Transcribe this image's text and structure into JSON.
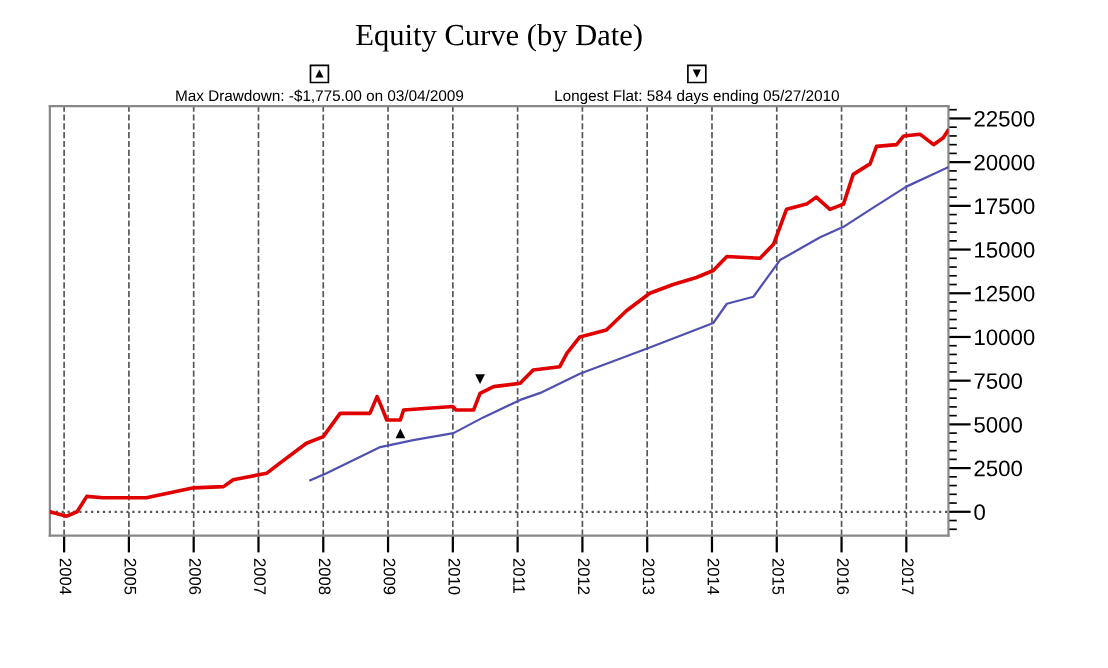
{
  "chart_data": {
    "type": "line",
    "title": "Equity Curve (by Date)",
    "annotations": [
      "▲",
      "Max Drawdown: -$1,775.00 on 03/04/2009",
      "▼",
      "Longest Flat: 584 days ending 05/27/2010",
      {
        "text": "▲",
        "x": 2009.19,
        "y": 5250
      },
      {
        "text": "▼",
        "x": 2010.42,
        "y": 6770
      }
    ],
    "series": [
      {
        "color": "#e00000",
        "x": [
          2003.78,
          2004.04,
          2004.2,
          2004.35,
          2004.6,
          2005.27,
          2006.0,
          2006.46,
          2006.61,
          2007.13,
          2007.33,
          2007.74,
          2008.0,
          2008.26,
          2008.72,
          2008.83,
          2008.9,
          2008.98,
          2009.19,
          2009.24,
          2010.0,
          2010.05,
          2010.32,
          2010.42,
          2010.63,
          2011.04,
          2011.24,
          2011.65,
          2011.76,
          2011.96,
          2012.37,
          2012.68,
          2013.04,
          2013.4,
          2013.76,
          2014.02,
          2014.23,
          2014.74,
          2014.95,
          2015.15,
          2015.46,
          2015.61,
          2015.82,
          2016.03,
          2016.18,
          2016.44,
          2016.54,
          2016.85,
          2016.96,
          2017.21,
          2017.42,
          2017.57,
          2017.64
        ],
        "values": [
          0,
          -250,
          0,
          880,
          800,
          800,
          1370,
          1440,
          1830,
          2210,
          2780,
          3920,
          4300,
          5630,
          5630,
          6590,
          6000,
          5250,
          5250,
          5820,
          6020,
          5820,
          5820,
          6770,
          7160,
          7350,
          8110,
          8300,
          9060,
          10000,
          10400,
          11500,
          12500,
          13000,
          13400,
          13800,
          14600,
          14500,
          15300,
          17300,
          17600,
          18000,
          17300,
          17600,
          19300,
          19900,
          20900,
          21000,
          21500,
          21600,
          21000,
          21400,
          21800
        ]
      },
      {
        "color": "#5050b0",
        "x": [
          2007.8,
          2008.05,
          2008.88,
          2009.39,
          2010.01,
          2010.47,
          2011.04,
          2011.35,
          2011.96,
          2013.04,
          2014.02,
          2014.23,
          2014.64,
          2015.05,
          2015.67,
          2016.03,
          2016.49,
          2017.0,
          2017.64
        ],
        "values": [
          1800,
          2200,
          3700,
          4100,
          4500,
          5400,
          6400,
          6800,
          7900,
          9400,
          10800,
          11900,
          12300,
          14400,
          15700,
          16300,
          17400,
          18600,
          19700
        ]
      }
    ],
    "xlim": [
      2003.78,
      2017.65
    ],
    "xticks": [
      2004,
      2005,
      2006,
      2007,
      2008,
      2009,
      2010,
      2011,
      2012,
      2013,
      2014,
      2015,
      2016,
      2017
    ],
    "ylim": [
      -1370,
      23200
    ],
    "yticks": [
      0,
      2500,
      5000,
      7500,
      10000,
      12500,
      15000,
      17500,
      20000,
      22500
    ],
    "ref_lines": [
      {
        "axis": "y",
        "value": 0,
        "line_style": "dotted"
      }
    ],
    "grid": "x",
    "line_style": "solid",
    "marker": "none"
  }
}
